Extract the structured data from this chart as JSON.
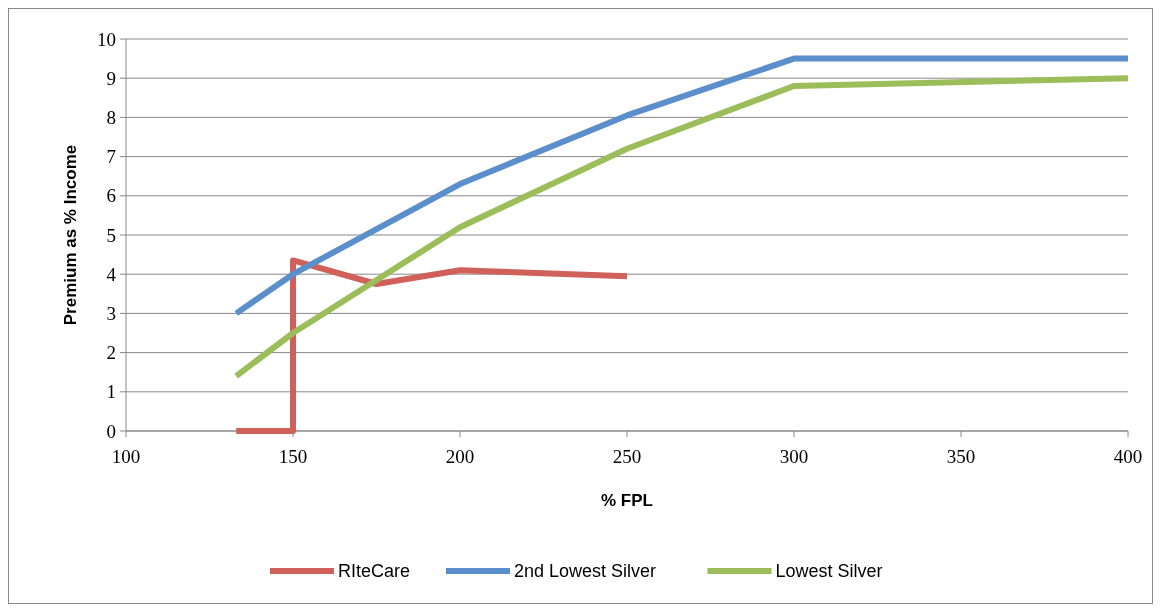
{
  "chart_data": {
    "type": "line",
    "xlabel": "% FPL",
    "ylabel": "Premium as % Income",
    "xlim": [
      100,
      400
    ],
    "xticks": [
      100,
      150,
      200,
      250,
      300,
      350,
      400
    ],
    "ylim": [
      0,
      10
    ],
    "yticks": [
      0,
      1,
      2,
      3,
      4,
      5,
      6,
      7,
      8,
      9,
      10
    ],
    "grid": "y",
    "legend": "bottom",
    "marker": "none",
    "line_style": "solid",
    "series": [
      {
        "name": "RIteCare",
        "color": "#d0615a",
        "x": [
          133,
          150,
          150,
          175,
          200,
          250
        ],
        "values": [
          0,
          0,
          4.35,
          3.75,
          4.1,
          3.95
        ]
      },
      {
        "name": "2nd Lowest Silver",
        "color": "#5b8fcb",
        "x": [
          133,
          150,
          200,
          250,
          300,
          400
        ],
        "values": [
          3.0,
          4.0,
          6.3,
          8.05,
          9.5,
          9.5
        ]
      },
      {
        "name": "Lowest Silver",
        "color": "#9bbd5a",
        "x": [
          133,
          150,
          200,
          250,
          300,
          400
        ],
        "values": [
          1.4,
          2.5,
          5.2,
          7.2,
          8.8,
          9.0
        ]
      }
    ]
  }
}
